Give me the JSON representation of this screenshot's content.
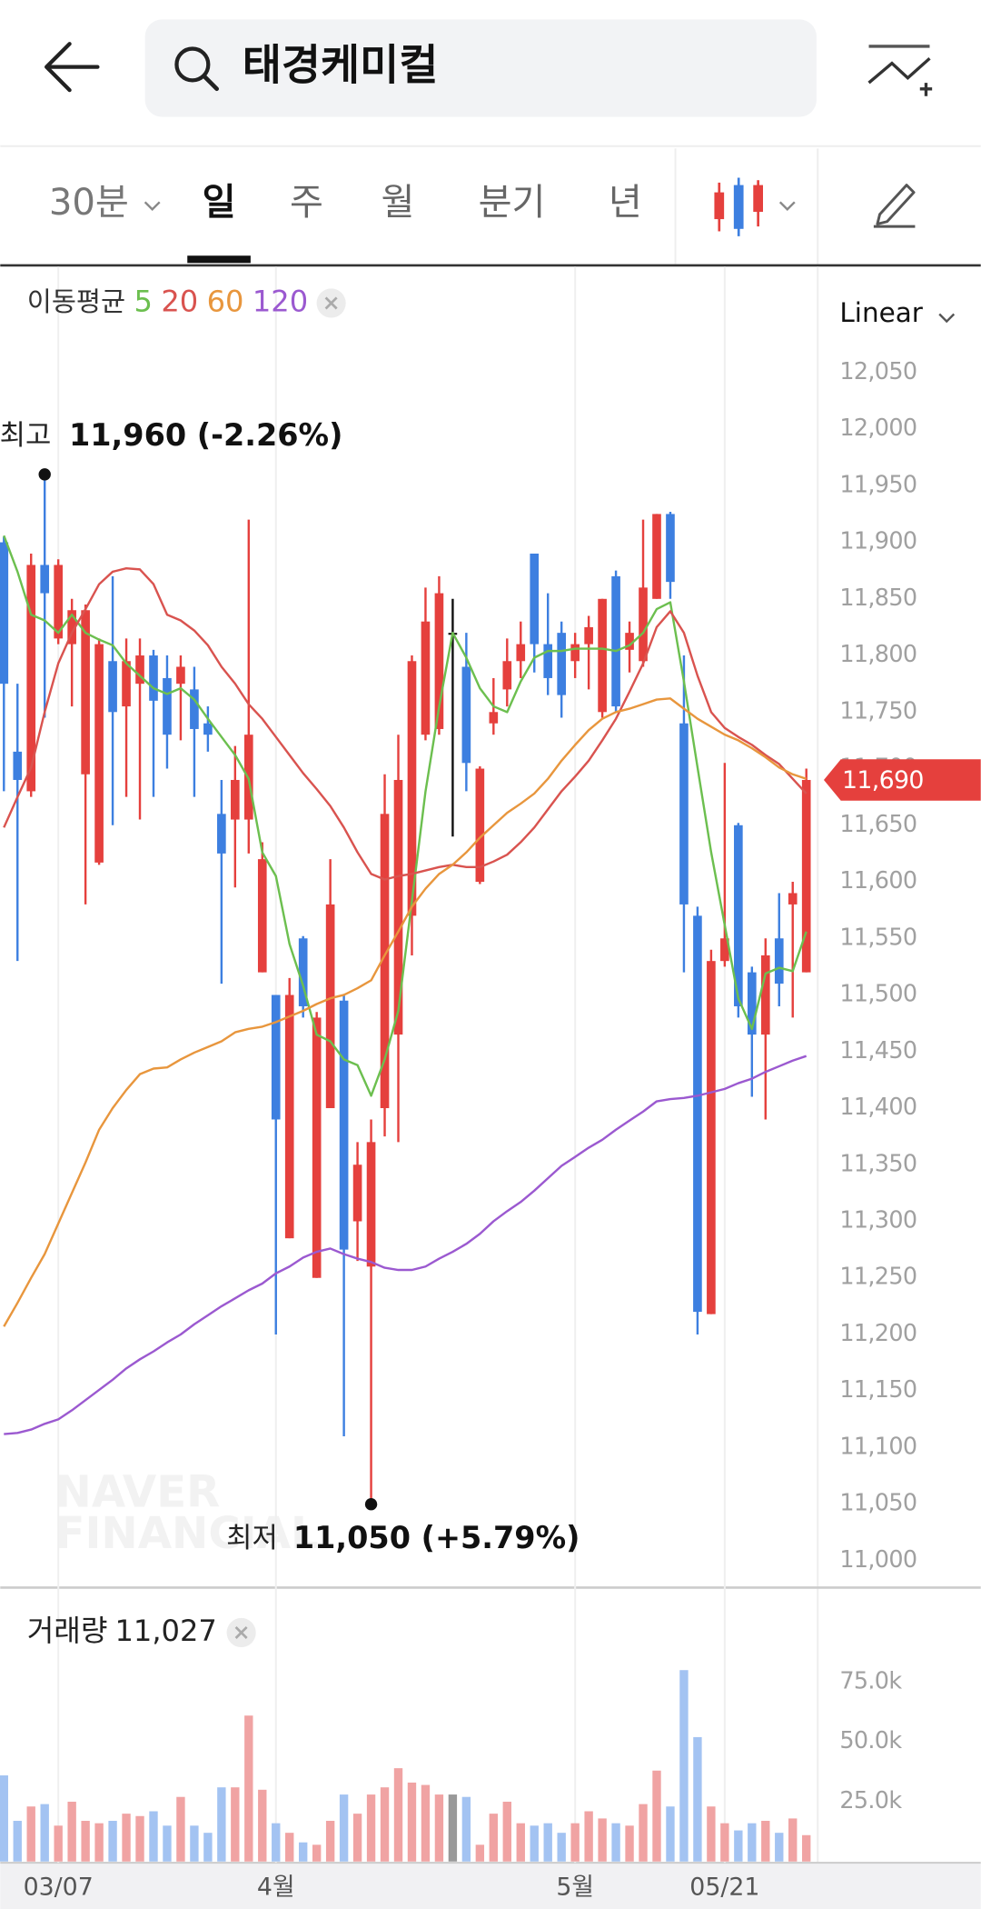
{
  "header": {
    "title": "태경케미컬"
  },
  "tabs": {
    "items": [
      "30분",
      "일",
      "주",
      "월",
      "분기",
      "년"
    ],
    "active": 1
  },
  "chart_data": {
    "type": "candlestick",
    "scale_label": "Linear",
    "ma_title": "이동평균",
    "categories": [
      null,
      null,
      null,
      null,
      "03/07",
      null,
      null,
      null,
      null,
      null,
      null,
      null,
      null,
      null,
      null,
      null,
      null,
      null,
      null,
      null,
      "4월",
      null,
      null,
      null,
      null,
      null,
      null,
      null,
      null,
      null,
      null,
      null,
      null,
      null,
      null,
      null,
      null,
      null,
      null,
      null,
      null,
      null,
      "5월",
      null,
      null,
      null,
      null,
      null,
      null,
      null,
      null,
      null,
      null,
      "05/21",
      null,
      null,
      null,
      null,
      null,
      null
    ],
    "open": [
      11900,
      11715,
      11680,
      11880,
      11815,
      11810,
      11695,
      11617,
      11795,
      11755,
      11775,
      11800,
      11780,
      11775,
      11770,
      11740,
      11660,
      11655,
      11655,
      11520,
      11500,
      11285,
      11550,
      11250,
      11400,
      11495,
      11300,
      11260,
      11400,
      11465,
      11570,
      11730,
      11735,
      11820,
      11790,
      11600,
      11740,
      11770,
      11795,
      11890,
      11810,
      11820,
      11795,
      11810,
      11750,
      11870,
      11805,
      11795,
      11850,
      11925,
      11740,
      11570,
      11218,
      11530,
      11650,
      11520,
      11465,
      11550,
      11580,
      11520
    ],
    "high": [
      11905,
      11775,
      11890,
      11960,
      11885,
      11850,
      11845,
      11815,
      11870,
      11815,
      11815,
      11805,
      11800,
      11800,
      11790,
      11755,
      11690,
      11720,
      11920,
      11635,
      11500,
      11515,
      11552,
      11485,
      11620,
      11500,
      11370,
      11390,
      11695,
      11730,
      11800,
      11860,
      11870,
      11850,
      11820,
      11702,
      11780,
      11815,
      11830,
      11890,
      11855,
      11830,
      11820,
      11835,
      11850,
      11875,
      11830,
      11920,
      11925,
      11927,
      11800,
      11578,
      11540,
      11705,
      11652,
      11525,
      11550,
      11590,
      11600,
      11700
    ],
    "low": [
      11680,
      11530,
      11675,
      11745,
      11810,
      11755,
      11580,
      11615,
      11650,
      11675,
      11655,
      11675,
      11700,
      11725,
      11675,
      11715,
      11510,
      11595,
      11625,
      11520,
      11200,
      11285,
      11480,
      11250,
      11400,
      11110,
      11265,
      11050,
      11375,
      11370,
      11535,
      11725,
      11730,
      11640,
      11680,
      11598,
      11730,
      11755,
      11780,
      11785,
      11765,
      11745,
      11780,
      11770,
      11745,
      11750,
      11785,
      11790,
      11850,
      11850,
      11520,
      11200,
      11218,
      11525,
      11480,
      11410,
      11390,
      11490,
      11480,
      11520
    ],
    "close": [
      11775,
      11690,
      11880,
      11855,
      11880,
      11840,
      11840,
      11810,
      11750,
      11795,
      11800,
      11760,
      11730,
      11790,
      11735,
      11730,
      11625,
      11690,
      11730,
      11620,
      11390,
      11500,
      11490,
      11480,
      11580,
      11275,
      11350,
      11370,
      11660,
      11690,
      11795,
      11830,
      11855,
      11820,
      11705,
      11700,
      11750,
      11795,
      11810,
      11810,
      11780,
      11765,
      11810,
      11825,
      11850,
      11755,
      11820,
      11860,
      11925,
      11865,
      11580,
      11220,
      11530,
      11550,
      11490,
      11465,
      11535,
      11510,
      11590,
      11690
    ],
    "up_color": "#e5403d",
    "down_color": "#3d7fe0",
    "flat_color": "#111111",
    "ma_series": [
      {
        "name": "5",
        "color": "#6cbf4f",
        "values": [
          11906,
          11874,
          11836,
          11831,
          11820,
          11836,
          11820,
          11814,
          11809,
          11793,
          11782,
          11771,
          11766,
          11771,
          11761,
          11744,
          11728,
          11712,
          11691,
          11626,
          11605,
          11545,
          11508,
          11465,
          11459,
          11443,
          11438,
          11411,
          11443,
          11486,
          11583,
          11680,
          11755,
          11820,
          11798,
          11771,
          11755,
          11750,
          11777,
          11798,
          11804,
          11804,
          11806,
          11806,
          11806,
          11804,
          11809,
          11820,
          11841,
          11847,
          11777,
          11701,
          11626,
          11562,
          11497,
          11470,
          11519,
          11524,
          11521,
          11556
        ]
      },
      {
        "name": "20",
        "color": "#d9534f",
        "values": [
          11648,
          11675,
          11701,
          11750,
          11793,
          11820,
          11841,
          11863,
          11874,
          11877,
          11876,
          11863,
          11836,
          11831,
          11822,
          11809,
          11790,
          11775,
          11757,
          11744,
          11728,
          11712,
          11696,
          11682,
          11667,
          11648,
          11626,
          11607,
          11602,
          11605,
          11607,
          11610,
          11613,
          11615,
          11613,
          11613,
          11618,
          11624,
          11635,
          11648,
          11664,
          11680,
          11693,
          11707,
          11725,
          11744,
          11768,
          11793,
          11825,
          11839,
          11820,
          11782,
          11750,
          11736,
          11728,
          11721,
          11712,
          11704,
          11691,
          11678
        ]
      },
      {
        "name": "60",
        "color": "#e8963d",
        "values": [
          11207,
          11228,
          11250,
          11271,
          11298,
          11325,
          11352,
          11381,
          11400,
          11416,
          11430,
          11435,
          11436,
          11443,
          11449,
          11454,
          11459,
          11467,
          11470,
          11472,
          11476,
          11481,
          11486,
          11492,
          11497,
          11500,
          11506,
          11513,
          11535,
          11556,
          11578,
          11594,
          11607,
          11615,
          11626,
          11639,
          11650,
          11661,
          11669,
          11678,
          11691,
          11707,
          11721,
          11734,
          11744,
          11750,
          11753,
          11757,
          11761,
          11762,
          11753,
          11744,
          11737,
          11730,
          11725,
          11718,
          11710,
          11701,
          11695,
          11691
        ]
      },
      {
        "name": "120",
        "color": "#9b59d0",
        "values": [
          11112,
          11113,
          11116,
          11121,
          11125,
          11133,
          11142,
          11151,
          11160,
          11170,
          11178,
          11185,
          11193,
          11200,
          11209,
          11217,
          11225,
          11232,
          11239,
          11245,
          11254,
          11260,
          11268,
          11273,
          11276,
          11271,
          11267,
          11264,
          11259,
          11257,
          11257,
          11260,
          11267,
          11273,
          11280,
          11289,
          11300,
          11309,
          11317,
          11327,
          11338,
          11349,
          11357,
          11365,
          11372,
          11381,
          11389,
          11397,
          11406,
          11408,
          11409,
          11411,
          11414,
          11417,
          11422,
          11426,
          11432,
          11437,
          11442,
          11446
        ]
      }
    ],
    "ylim": [
      11000,
      12050
    ],
    "yticks": [
      {
        "value": 11000,
        "label": "11,000"
      },
      {
        "value": 11050,
        "label": "11,050"
      },
      {
        "value": 11100,
        "label": "11,100"
      },
      {
        "value": 11150,
        "label": "11,150"
      },
      {
        "value": 11200,
        "label": "11,200"
      },
      {
        "value": 11250,
        "label": "11,250"
      },
      {
        "value": 11300,
        "label": "11,300"
      },
      {
        "value": 11350,
        "label": "11,350"
      },
      {
        "value": 11400,
        "label": "11,400"
      },
      {
        "value": 11450,
        "label": "11,450"
      },
      {
        "value": 11500,
        "label": "11,500"
      },
      {
        "value": 11550,
        "label": "11,550"
      },
      {
        "value": 11600,
        "label": "11,600"
      },
      {
        "value": 11650,
        "label": "11,650"
      },
      {
        "value": 11700,
        "label": "11,700"
      },
      {
        "value": 11750,
        "label": "11,750"
      },
      {
        "value": 11800,
        "label": "11,800"
      },
      {
        "value": 11850,
        "label": "11,850"
      },
      {
        "value": 11900,
        "label": "11,900"
      },
      {
        "value": 11950,
        "label": "11,950"
      },
      {
        "value": 12000,
        "label": "12,000"
      },
      {
        "value": 12050,
        "label": "12,050"
      }
    ],
    "last_price": {
      "value": 11690,
      "label": "11,690"
    },
    "high_note": {
      "label": "최고",
      "value": 11960,
      "text": "11,960 (-2.26%)"
    },
    "low_note": {
      "label": "최저",
      "value": 11050,
      "text": "11,050 (+5.79%)"
    },
    "watermark": [
      "NAVER",
      "FINANCIAL"
    ],
    "volume": {
      "title": "거래량",
      "last_value_label": "11,027",
      "up_color": "#f0a3a3",
      "down_color": "#a3c3f2",
      "flat_color": "#999999",
      "values": [
        36000,
        17000,
        23000,
        24000,
        15000,
        25000,
        17000,
        16000,
        17000,
        20000,
        19000,
        21000,
        15000,
        27000,
        15000,
        12000,
        31000,
        31000,
        61000,
        30000,
        16000,
        12000,
        8000,
        7000,
        17000,
        28000,
        20000,
        28000,
        31000,
        39000,
        33000,
        32000,
        28000,
        28000,
        27000,
        7000,
        20000,
        25000,
        16000,
        15000,
        16000,
        12000,
        16000,
        21000,
        18000,
        16000,
        15000,
        24000,
        38000,
        23000,
        80000,
        52000,
        23000,
        16000,
        13000,
        16000,
        17000,
        12000,
        18000,
        11027
      ],
      "ylim": [
        0,
        86000
      ],
      "yticks": [
        {
          "value": 25000,
          "label": "25.0k"
        },
        {
          "value": 50000,
          "label": "50.0k"
        },
        {
          "value": 75000,
          "label": "75.0k"
        }
      ]
    }
  }
}
